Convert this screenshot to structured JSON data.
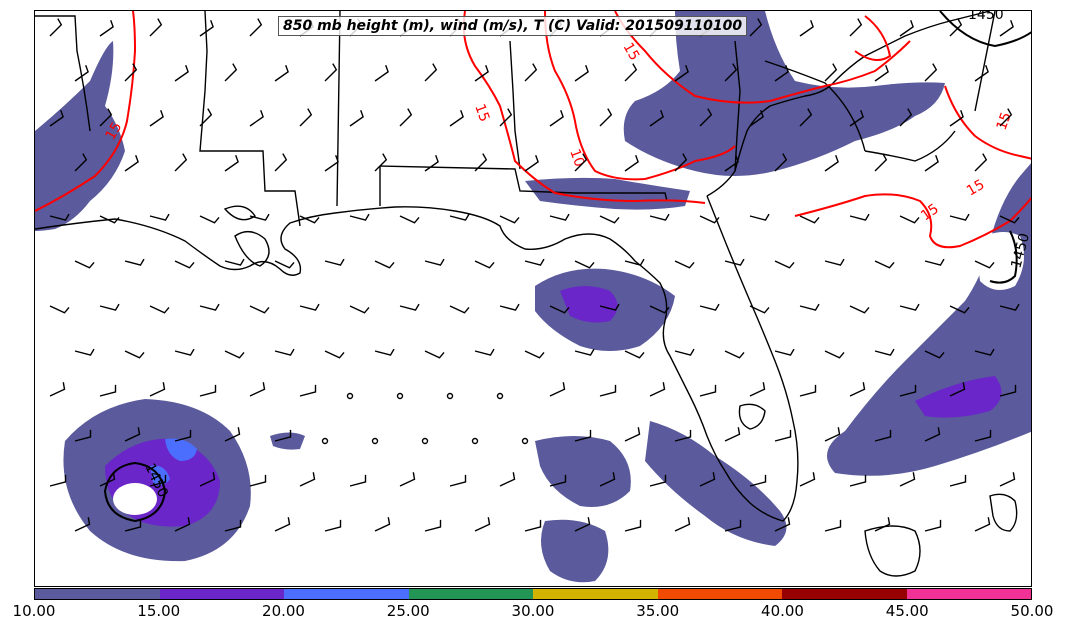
{
  "title": "850 mb height (m), wind (m/s), T (C) Valid: 201509110100",
  "colorbar": {
    "colors": [
      "#5a5a9c",
      "#6a26c8",
      "#4c6eff",
      "#239656",
      "#d2b400",
      "#f04b00",
      "#960000",
      "#f03296"
    ],
    "labels": [
      "10.00",
      "15.00",
      "20.00",
      "25.00",
      "30.00",
      "35.00",
      "40.00",
      "45.00",
      "50.00"
    ]
  },
  "contours": {
    "temperature_color": "#ff0000",
    "height_color": "#000000",
    "temperature_labels": [
      "15",
      "15",
      "10",
      "15",
      "15",
      "15",
      "15"
    ],
    "height_labels": [
      "1450",
      "1450",
      "1450"
    ]
  }
}
